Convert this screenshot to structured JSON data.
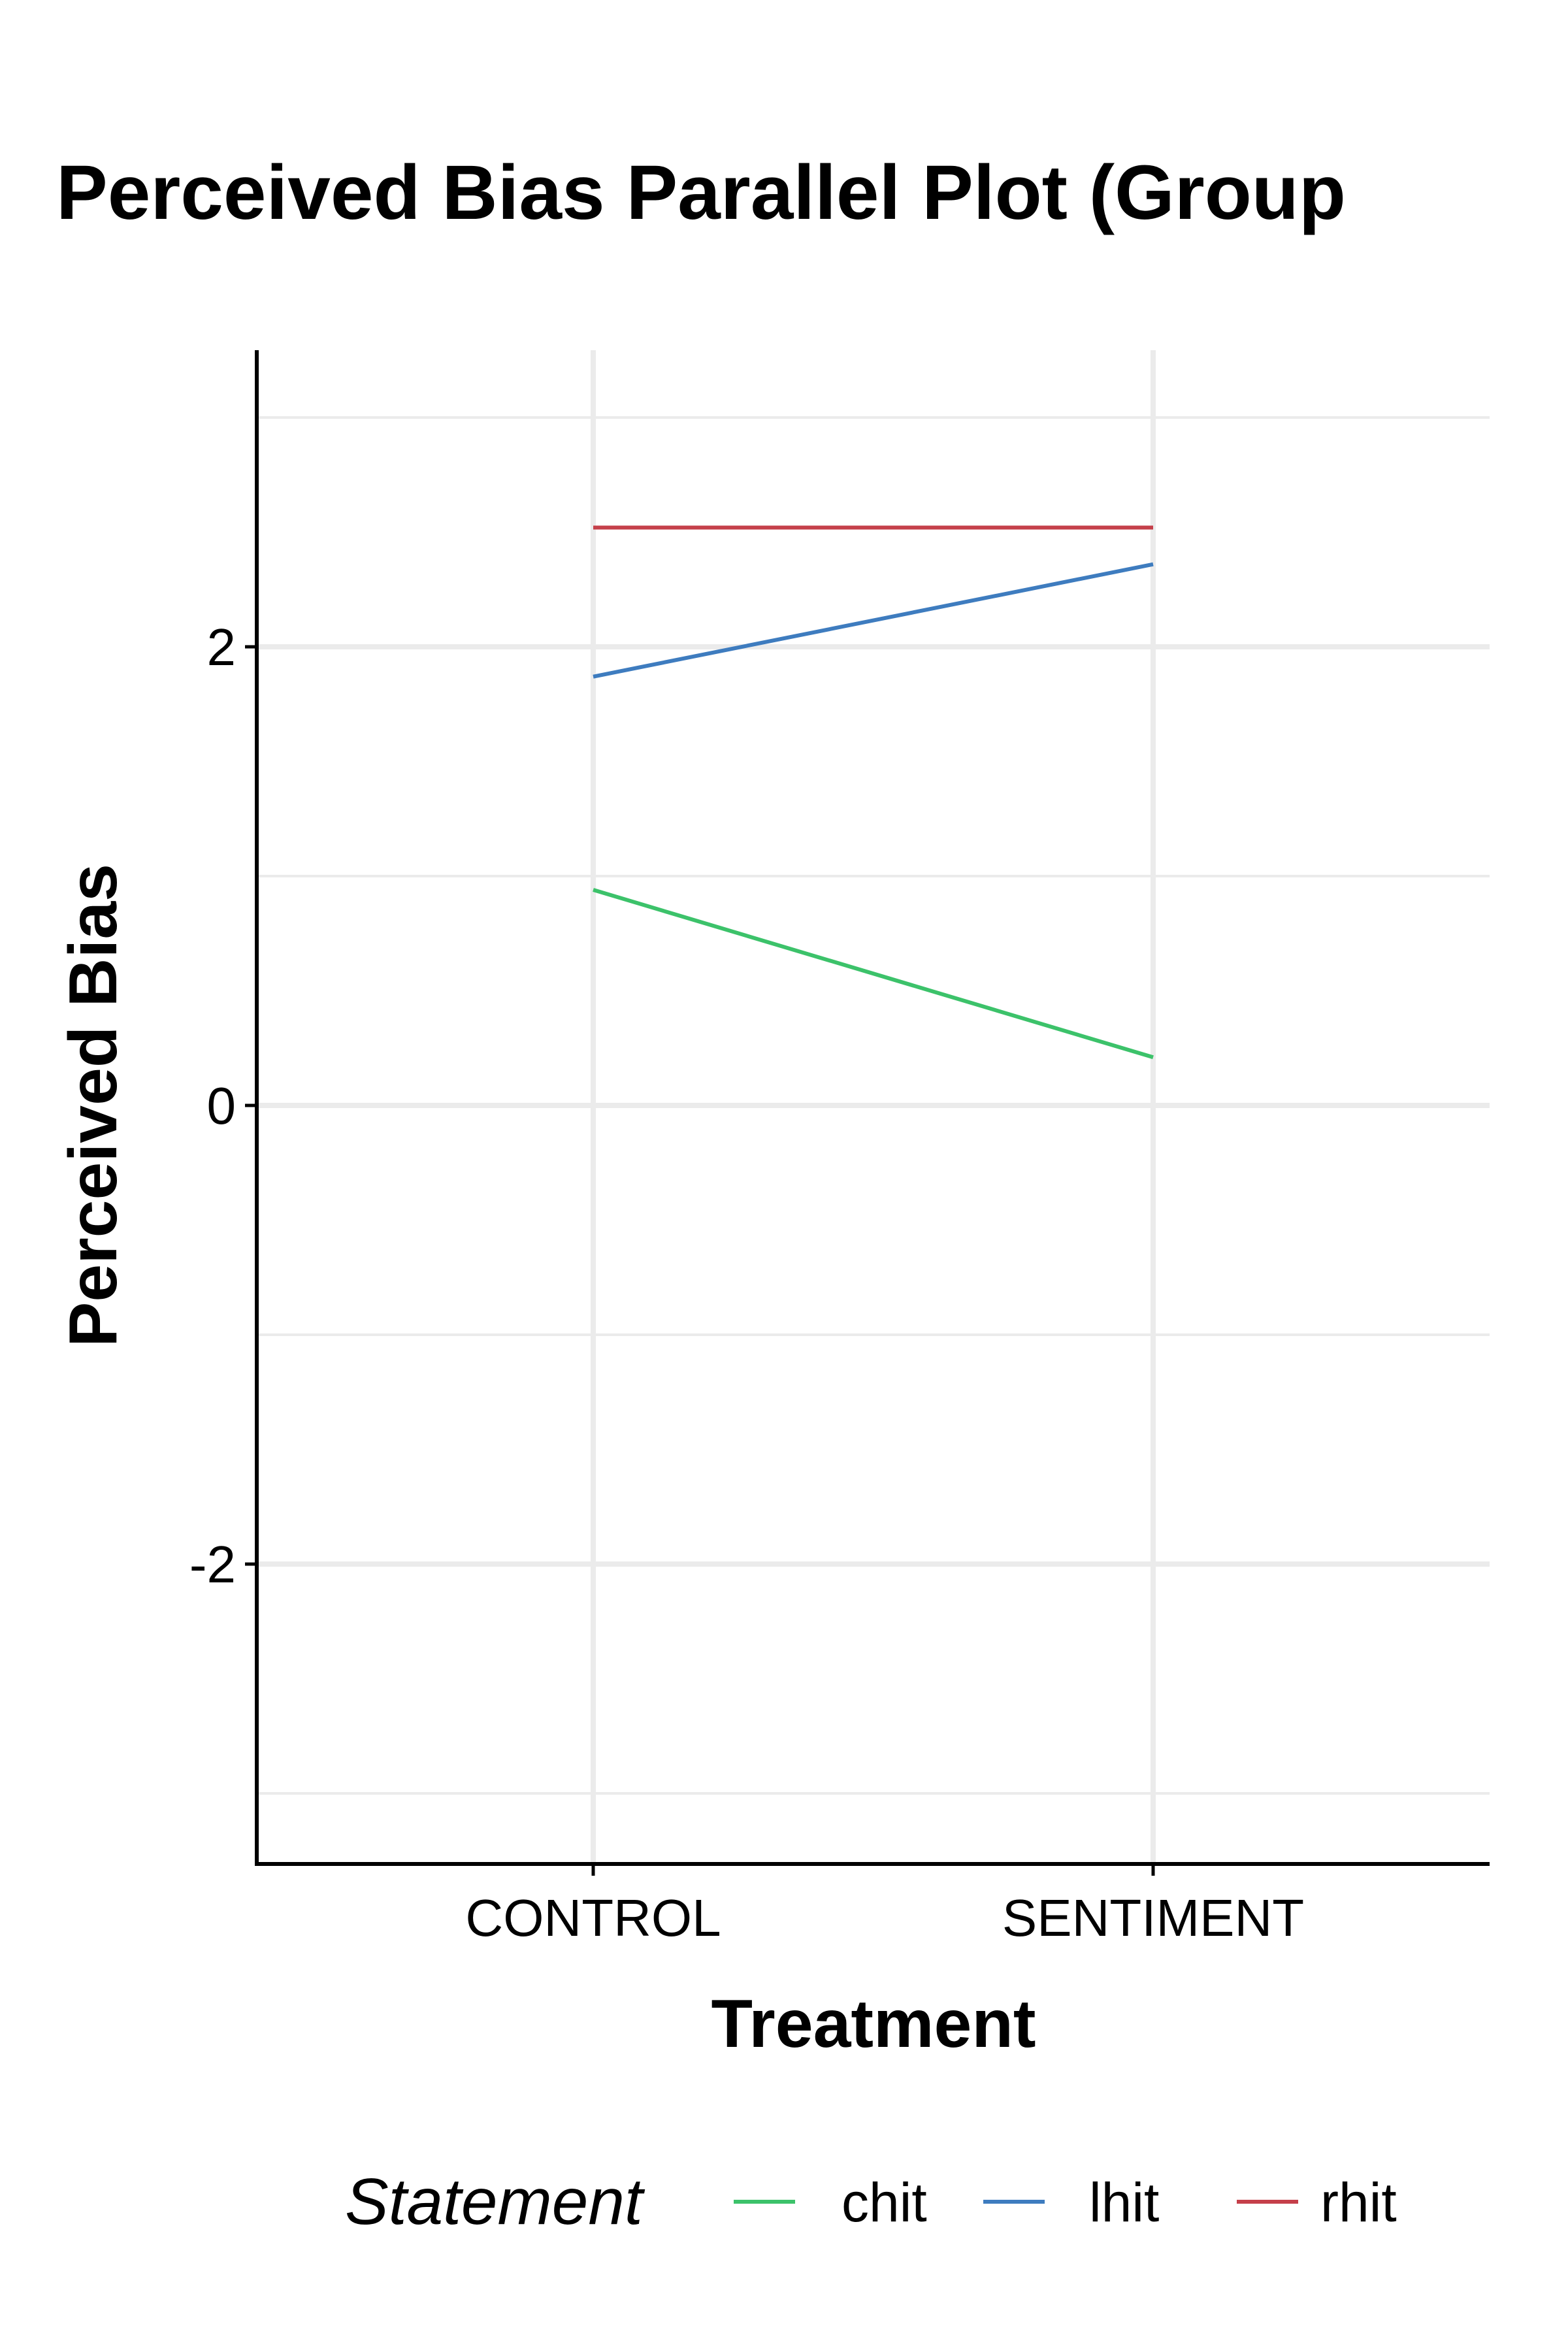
{
  "chart_data": {
    "type": "line",
    "title": "Perceived Bias Parallel Plot (Group",
    "xlabel": "Treatment",
    "ylabel": "Perceived Bias",
    "categories": [
      "CONTROL",
      "SENTIMENT"
    ],
    "ylim": [
      -3.3,
      3.3
    ],
    "yticks": [
      -2,
      0,
      2
    ],
    "grid": true,
    "legend": {
      "title": "Statement",
      "placement": "bottom"
    },
    "series": [
      {
        "name": "chit",
        "values": [
          0.94,
          0.21
        ],
        "color": "#3CC26A"
      },
      {
        "name": "lhit",
        "values": [
          1.87,
          2.36
        ],
        "color": "#3E7CBF"
      },
      {
        "name": "rhit",
        "values": [
          2.52,
          2.52
        ],
        "color": "#C5404A"
      }
    ]
  }
}
